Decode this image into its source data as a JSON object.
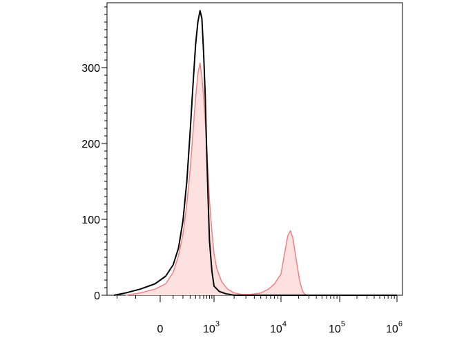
{
  "chart_data": {
    "type": "area",
    "title": "",
    "xlabel": "",
    "ylabel": "",
    "x_scale": "biexponential",
    "xlim": [
      -300,
      1000000
    ],
    "ylim": [
      0,
      380
    ],
    "grid": false,
    "legend": "none",
    "y_ticks": [
      {
        "value": 0,
        "label": "0"
      },
      {
        "value": 100,
        "label": "100"
      },
      {
        "value": 200,
        "label": "200"
      },
      {
        "value": 300,
        "label": "300"
      }
    ],
    "x_ticks": [
      {
        "value": 0,
        "base": "0",
        "exp": ""
      },
      {
        "value": 1000,
        "base": "10",
        "exp": "3"
      },
      {
        "value": 10000,
        "base": "10",
        "exp": "4"
      },
      {
        "value": 100000,
        "base": "10",
        "exp": "5"
      },
      {
        "value": 1000000,
        "base": "10",
        "exp": "6"
      }
    ],
    "series": [
      {
        "style": "filled",
        "stroke": "#f08080",
        "fill": "#fde1e1",
        "x": [
          -150,
          -80,
          -20,
          40,
          100,
          150,
          200,
          250,
          300,
          350,
          400,
          450,
          500,
          550,
          600,
          650,
          700,
          750,
          800,
          900,
          1000,
          1100,
          1300,
          1600,
          2000,
          2600,
          3500,
          5000,
          6500,
          8000,
          10000,
          11500,
          13000,
          14500,
          16000,
          17500,
          19000,
          20500,
          22000,
          23500,
          25000,
          28000,
          40000,
          100000,
          400000,
          1000000
        ],
        "y": [
          0,
          3,
          8,
          15,
          30,
          52,
          80,
          120,
          165,
          215,
          260,
          292,
          306,
          288,
          262,
          228,
          195,
          160,
          125,
          85,
          55,
          35,
          18,
          8,
          3,
          1,
          1,
          3,
          8,
          15,
          28,
          55,
          78,
          85,
          75,
          55,
          38,
          22,
          12,
          5,
          2,
          0,
          0,
          0,
          0,
          0
        ]
      },
      {
        "style": "line",
        "stroke": "#000000",
        "fill": "none",
        "x": [
          -220,
          -150,
          -80,
          -20,
          40,
          100,
          150,
          200,
          250,
          300,
          350,
          400,
          450,
          500,
          550,
          600,
          650,
          700,
          750,
          800,
          900,
          1000,
          1200,
          1500,
          2000,
          3000,
          10000,
          1000000
        ],
        "y": [
          0,
          3,
          8,
          15,
          25,
          40,
          62,
          98,
          150,
          215,
          278,
          330,
          360,
          375,
          365,
          320,
          262,
          185,
          125,
          72,
          32,
          12,
          5,
          2,
          0,
          0,
          0,
          0
        ]
      }
    ]
  }
}
